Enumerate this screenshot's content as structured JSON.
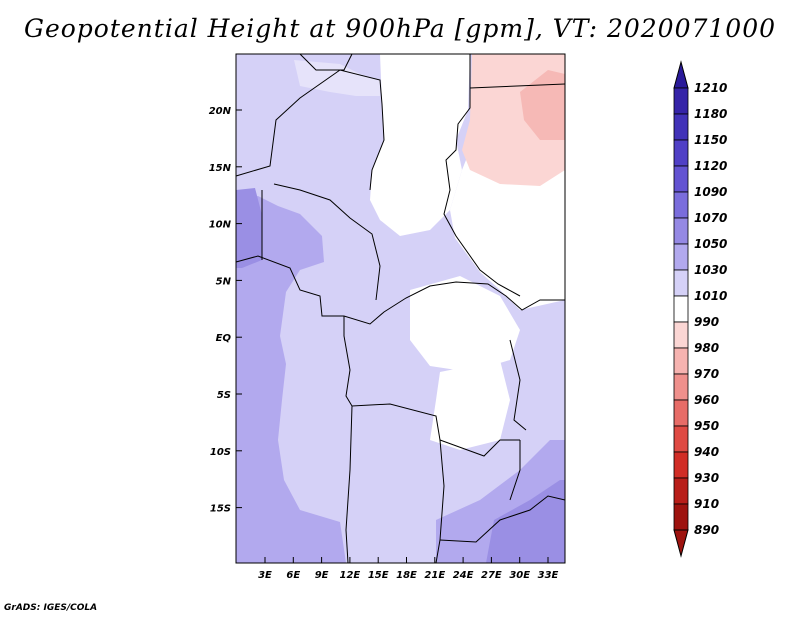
{
  "title": "Geopotential Height at 900hPa [gpm], VT: 2020071000",
  "footer": "GrADS: IGES/COLA",
  "map": {
    "lat_labels": [
      "20N",
      "15N",
      "10N",
      "5N",
      "EQ",
      "5S",
      "10S",
      "15S"
    ],
    "lon_labels": [
      "3E",
      "6E",
      "9E",
      "12E",
      "15E",
      "18E",
      "21E",
      "24E",
      "27E",
      "30E",
      "33E"
    ]
  },
  "colorbar": {
    "levels": [
      "1210",
      "1180",
      "1150",
      "1120",
      "1090",
      "1070",
      "1050",
      "1030",
      "1010",
      "990",
      "980",
      "970",
      "960",
      "950",
      "940",
      "930",
      "910",
      "890"
    ],
    "colors": [
      "#2a1a9a",
      "#3524a8",
      "#4132b8",
      "#5040c6",
      "#6353d2",
      "#7a6ddc",
      "#9589e4",
      "#b2a9ee",
      "#d5d1f7",
      "#ffffff",
      "#fbd6d4",
      "#f6b3b0",
      "#ef908c",
      "#e76c67",
      "#df4a43",
      "#d12d26",
      "#b81e19",
      "#9e130f"
    ]
  }
}
